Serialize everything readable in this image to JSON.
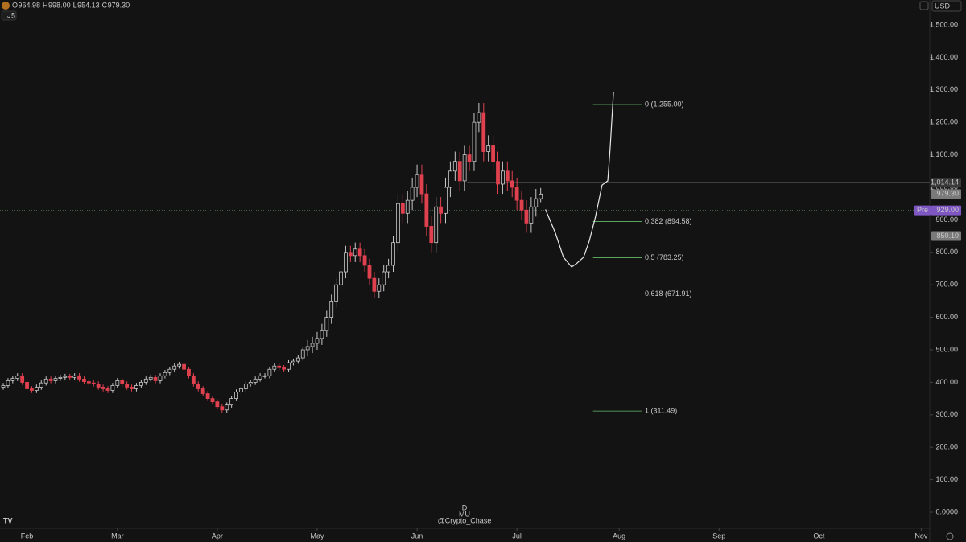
{
  "header": {
    "ohlc": [
      {
        "key": "O",
        "value": "964.98"
      },
      {
        "key": "H",
        "value": "998.00"
      },
      {
        "key": "L",
        "value": "954.13"
      },
      {
        "key": "C",
        "value": "979.30"
      }
    ],
    "indicators": "5",
    "currency": "USD"
  },
  "watermark": [
    "D",
    "MU",
    "@Crypto_Chase"
  ],
  "chart_data": {
    "type": "candlestick",
    "x": [
      0,
      1,
      2,
      3,
      4,
      5,
      6,
      7,
      8,
      9,
      10,
      11,
      12,
      13,
      14,
      15,
      16,
      17,
      18,
      19,
      20,
      21,
      22,
      23,
      24,
      25,
      26,
      27,
      28,
      29,
      30,
      31,
      32,
      33,
      34,
      35,
      36,
      37,
      38,
      39,
      40,
      41,
      42,
      43,
      44,
      45,
      46,
      47,
      48,
      49,
      50,
      51,
      52,
      53,
      54,
      55,
      56,
      57,
      58,
      59,
      60,
      61,
      62,
      63,
      64,
      65,
      66,
      67,
      68,
      69,
      70,
      71,
      72,
      73,
      74,
      75,
      76,
      77,
      78,
      79,
      80,
      81,
      82,
      83,
      84,
      85,
      86,
      87,
      88,
      89,
      90,
      91,
      92,
      93,
      94,
      95,
      96,
      97,
      98,
      99,
      100,
      101,
      102,
      103,
      104,
      105,
      106,
      107,
      108,
      109,
      110,
      111,
      112,
      113
    ],
    "open": [
      385,
      390,
      405,
      412,
      420,
      400,
      380,
      375,
      385,
      398,
      410,
      405,
      412,
      415,
      418,
      415,
      420,
      410,
      402,
      398,
      395,
      385,
      380,
      375,
      390,
      405,
      395,
      385,
      380,
      390,
      400,
      410,
      415,
      405,
      420,
      430,
      440,
      450,
      455,
      440,
      420,
      395,
      380,
      365,
      350,
      340,
      325,
      315,
      330,
      350,
      370,
      380,
      395,
      400,
      410,
      420,
      420,
      440,
      450,
      445,
      440,
      460,
      465,
      475,
      500,
      510,
      520,
      535,
      560,
      600,
      650,
      700,
      740,
      800,
      790,
      810,
      790,
      760,
      720,
      680,
      700,
      740,
      760,
      830,
      950,
      920,
      960,
      1000,
      1040,
      980,
      880,
      830,
      940,
      920,
      1000,
      1050,
      1080,
      1020,
      1100,
      1080,
      1200,
      1230,
      1110,
      1130,
      1080,
      1010,
      1050,
      1020,
      1000,
      960,
      930,
      890,
      940,
      964.98
    ],
    "high": [
      398,
      413,
      420,
      428,
      428,
      408,
      388,
      393,
      406,
      418,
      418,
      420,
      423,
      426,
      426,
      428,
      428,
      418,
      410,
      406,
      403,
      393,
      388,
      398,
      413,
      413,
      403,
      393,
      398,
      408,
      418,
      423,
      423,
      428,
      438,
      448,
      458,
      463,
      463,
      448,
      428,
      403,
      388,
      373,
      358,
      348,
      333,
      338,
      358,
      378,
      388,
      403,
      408,
      418,
      428,
      428,
      448,
      458,
      458,
      453,
      468,
      473,
      483,
      508,
      530,
      540,
      555,
      580,
      620,
      670,
      720,
      760,
      820,
      820,
      830,
      830,
      810,
      780,
      740,
      720,
      760,
      780,
      850,
      980,
      980,
      990,
      1030,
      1070,
      1070,
      1010,
      910,
      970,
      970,
      1030,
      1080,
      1110,
      1110,
      1130,
      1130,
      1230,
      1260,
      1260,
      1160,
      1160,
      1110,
      1080,
      1080,
      1050,
      1030,
      990,
      960,
      970,
      995,
      998
    ],
    "low": [
      377,
      382,
      397,
      404,
      392,
      372,
      367,
      367,
      377,
      390,
      397,
      397,
      404,
      407,
      407,
      407,
      402,
      394,
      390,
      387,
      377,
      372,
      367,
      367,
      382,
      387,
      377,
      372,
      372,
      382,
      392,
      402,
      397,
      397,
      412,
      422,
      432,
      442,
      432,
      412,
      387,
      372,
      357,
      342,
      332,
      317,
      307,
      307,
      322,
      342,
      362,
      372,
      387,
      392,
      402,
      412,
      412,
      432,
      437,
      432,
      432,
      452,
      457,
      467,
      480,
      490,
      500,
      515,
      540,
      580,
      630,
      680,
      720,
      770,
      770,
      770,
      740,
      700,
      660,
      660,
      680,
      720,
      740,
      800,
      890,
      890,
      930,
      970,
      950,
      850,
      800,
      800,
      890,
      890,
      970,
      1020,
      990,
      990,
      1050,
      1050,
      1170,
      1080,
      1080,
      1050,
      980,
      980,
      990,
      970,
      930,
      900,
      860,
      860,
      910,
      954.13
    ],
    "close": [
      390,
      405,
      412,
      420,
      400,
      380,
      375,
      385,
      398,
      410,
      405,
      412,
      415,
      418,
      415,
      420,
      410,
      402,
      398,
      395,
      385,
      380,
      375,
      390,
      405,
      395,
      385,
      380,
      390,
      400,
      410,
      415,
      405,
      420,
      430,
      440,
      450,
      455,
      440,
      420,
      395,
      380,
      365,
      350,
      340,
      325,
      315,
      330,
      350,
      370,
      380,
      395,
      400,
      410,
      420,
      420,
      440,
      450,
      445,
      440,
      460,
      465,
      475,
      500,
      510,
      520,
      535,
      560,
      600,
      650,
      700,
      740,
      800,
      790,
      810,
      790,
      760,
      720,
      680,
      700,
      740,
      760,
      830,
      950,
      920,
      960,
      1000,
      1040,
      980,
      880,
      830,
      940,
      920,
      1000,
      1050,
      1080,
      1020,
      1100,
      1080,
      1200,
      1230,
      1110,
      1130,
      1080,
      1010,
      1050,
      1020,
      1000,
      960,
      930,
      890,
      940,
      965,
      979.3
    ],
    "up_color": "#c8c8c8",
    "down_color": "#e0414f",
    "xlim": [
      -0.68,
      194.8
    ],
    "ylim": [
      -49.5,
      1576.7
    ],
    "xticks": [
      {
        "value": 5,
        "label": "Feb"
      },
      {
        "value": 24,
        "label": "Mar"
      },
      {
        "value": 45,
        "label": "Apr"
      },
      {
        "value": 66,
        "label": "May"
      },
      {
        "value": 87,
        "label": "Jun"
      },
      {
        "value": 108,
        "label": "Jul"
      },
      {
        "value": 129.5,
        "label": "Aug"
      },
      {
        "value": 150.5,
        "label": "Sep"
      },
      {
        "value": 171.5,
        "label": "Oct"
      },
      {
        "value": 193,
        "label": "Nov"
      }
    ],
    "yticks": [
      {
        "value": 0,
        "label": "0.0000"
      },
      {
        "value": 100,
        "label": "100.00"
      },
      {
        "value": 200,
        "label": "200.00"
      },
      {
        "value": 300,
        "label": "300.00"
      },
      {
        "value": 400,
        "label": "400.00"
      },
      {
        "value": 500,
        "label": "500.00"
      },
      {
        "value": 600,
        "label": "600.00"
      },
      {
        "value": 700,
        "label": "700.00"
      },
      {
        "value": 800,
        "label": "800.00"
      },
      {
        "value": 900,
        "label": "900.00"
      },
      {
        "value": 1000,
        "label": "1,000.00"
      },
      {
        "value": 1100,
        "label": "1,100.00"
      },
      {
        "value": 1200,
        "label": "1,200.00"
      },
      {
        "value": 1300,
        "label": "1,300.00"
      },
      {
        "value": 1400,
        "label": "1,400.00"
      },
      {
        "value": 1500,
        "label": "1,500.00"
      }
    ],
    "hlines": [
      {
        "value": 1014.14,
        "x_start": 97.5
      },
      {
        "value": 850.1,
        "x_start": 90.2
      }
    ],
    "premarket": {
      "name": "Pre",
      "value": 929,
      "label": "929.00",
      "color": "#7e57c2"
    },
    "price_tags": [
      {
        "value": 1014.14,
        "label": "1,014.14",
        "color": "#3a3a3a"
      },
      {
        "value": 979.3,
        "label": "979.30",
        "color": "#7a7a7a"
      },
      {
        "value": 850.1,
        "label": "850.10",
        "color": "#7a7a7a"
      }
    ],
    "fib": {
      "x_start": 124,
      "x_end": 134.2,
      "color": "#66bb6a",
      "levels": [
        {
          "value": 1255,
          "label": "0 (1,255.00)"
        },
        {
          "value": 894.58,
          "label": "0.382 (894.58)"
        },
        {
          "value": 783.25,
          "label": "0.5 (783.25)"
        },
        {
          "value": 671.91,
          "label": "0.618 (671.91)"
        },
        {
          "value": 311.49,
          "label": "1 (311.49)"
        }
      ]
    },
    "projection": {
      "x": [
        114,
        116.1,
        117.8,
        119.5,
        120.5,
        122,
        123.2,
        124.5,
        125.9,
        127.1,
        127.6,
        128.3
      ],
      "y": [
        932,
        859,
        785,
        755,
        765,
        785,
        834,
        908,
        1007,
        1020,
        1119,
        1292
      ]
    }
  }
}
